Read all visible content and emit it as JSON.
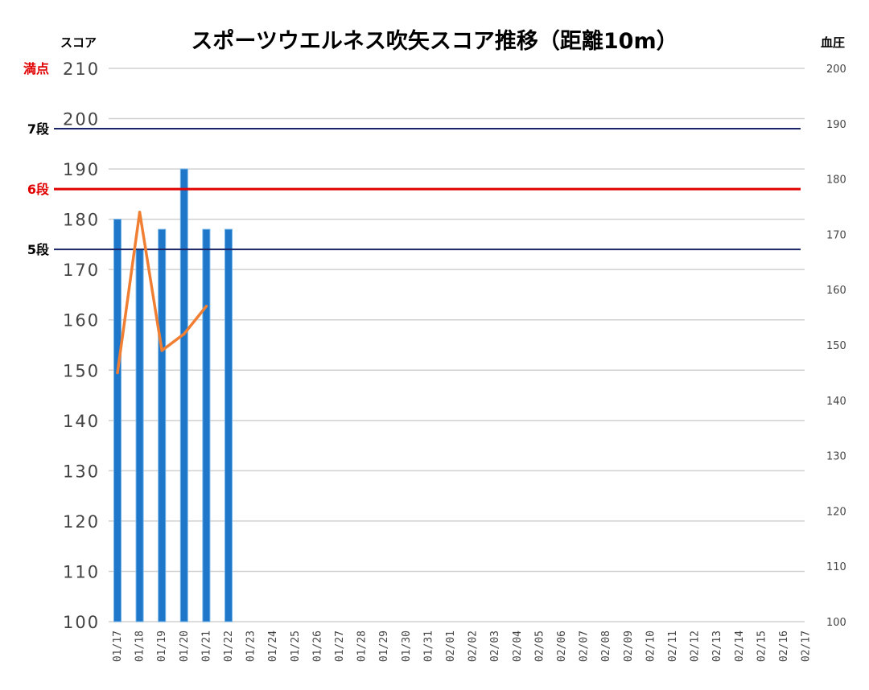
{
  "chart_data": {
    "type": "bar",
    "title": "スポーツウエルネス吹矢スコア推移（距離10m）",
    "left_axis_label": "スコア",
    "right_axis_label": "血圧",
    "ylim": [
      100,
      210
    ],
    "y_ticks": [
      100,
      110,
      120,
      130,
      140,
      150,
      160,
      170,
      180,
      190,
      200,
      210
    ],
    "y2lim": [
      100,
      200
    ],
    "y2_ticks": [
      100,
      110,
      120,
      130,
      140,
      150,
      160,
      170,
      180,
      190,
      200
    ],
    "categories": [
      "01/17",
      "01/18",
      "01/19",
      "01/20",
      "01/21",
      "01/22",
      "01/23",
      "01/24",
      "01/25",
      "01/26",
      "01/27",
      "01/28",
      "01/29",
      "01/30",
      "01/31",
      "02/01",
      "02/02",
      "02/03",
      "02/04",
      "02/05",
      "02/06",
      "02/07",
      "02/08",
      "02/09",
      "02/10",
      "02/11",
      "02/12",
      "02/13",
      "02/14",
      "02/15",
      "02/16",
      "02/17"
    ],
    "series": [
      {
        "type": "bar",
        "axis": "left",
        "color": "#1f77c9",
        "values": [
          180,
          174,
          178,
          190,
          178,
          178,
          null,
          null,
          null,
          null,
          null,
          null,
          null,
          null,
          null,
          null,
          null,
          null,
          null,
          null,
          null,
          null,
          null,
          null,
          null,
          null,
          null,
          null,
          null,
          null,
          null,
          null
        ]
      },
      {
        "type": "line",
        "axis": "right",
        "color": "#f07f33",
        "values": [
          145,
          174,
          149,
          152,
          157,
          null,
          null,
          null,
          null,
          null,
          null,
          null,
          null,
          null,
          null,
          null,
          null,
          null,
          null,
          null,
          null,
          null,
          null,
          null,
          null,
          null,
          null,
          null,
          null,
          null,
          null,
          null
        ]
      }
    ],
    "reference_lines": [
      {
        "label": "満点",
        "value": 210,
        "color": "#e00000",
        "label_color": "#e00000",
        "draw_line": false
      },
      {
        "label": "7段",
        "value": 198,
        "color": "#1a2466",
        "label_color": "#000000",
        "draw_line": true
      },
      {
        "label": "6段",
        "value": 186,
        "color": "#e00000",
        "label_color": "#e00000",
        "draw_line": true
      },
      {
        "label": "5段",
        "value": 174,
        "color": "#1a2466",
        "label_color": "#000000",
        "draw_line": true
      }
    ],
    "grid": true
  }
}
